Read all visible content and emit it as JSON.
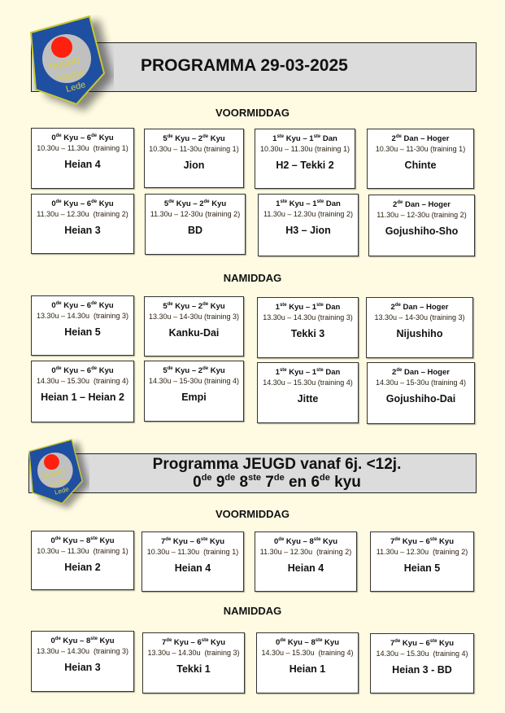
{
  "logo": {
    "lines": [
      "TAISHO",
      "Karate",
      "Lede"
    ],
    "colors": {
      "shield": "#1f4fa0",
      "border": "#c8c832",
      "disc": "#c0c0c0",
      "sun": "#ff2010"
    }
  },
  "main_program": {
    "title": "PROGRAMMA 29-03-2025",
    "morning_label": "VOORMIDDAG",
    "afternoon_label": "NAMIDDAG",
    "morning_cards": [
      {
        "level": [
          [
            "0",
            "de",
            " Kyu – "
          ],
          [
            "6",
            "de",
            " Kyu"
          ]
        ],
        "time": "10.30u – 11.30u  (training 1)",
        "kata": "Heian 4"
      },
      {
        "level": [
          [
            "5",
            "de",
            " Kyu – "
          ],
          [
            "2",
            "de",
            " Kyu"
          ]
        ],
        "time": "10.30u – 11-30u (training 1)",
        "kata": "Jion"
      },
      {
        "level": [
          [
            "1",
            "ste",
            " Kyu – "
          ],
          [
            "1",
            "ste",
            " Dan"
          ]
        ],
        "time": "10.30u – 11.30u (training 1)",
        "kata": "H2 – Tekki 2"
      },
      {
        "level": [
          [
            "2",
            "de",
            " Dan – Hoger"
          ]
        ],
        "time": "10.30u – 11-30u (training 1)",
        "kata": "Chinte"
      },
      {
        "level": [
          [
            "0",
            "de",
            " Kyu – "
          ],
          [
            "6",
            "de",
            " Kyu"
          ]
        ],
        "time": "11.30u – 12.30u  (training 2)",
        "kata": "Heian 3"
      },
      {
        "level": [
          [
            "5",
            "de",
            " Kyu – "
          ],
          [
            "2",
            "de",
            " Kyu"
          ]
        ],
        "time": "11.30u – 12-30u (training 2)",
        "kata": "BD"
      },
      {
        "level": [
          [
            "1",
            "ste",
            " Kyu – "
          ],
          [
            "1",
            "ste",
            " Dan"
          ]
        ],
        "time": "11.30u – 12.30u (training 2)",
        "kata": "H3 – Jion"
      },
      {
        "level": [
          [
            "2",
            "de",
            " Dan – Hoger"
          ]
        ],
        "time": "11.30u – 12-30u (training 2)",
        "kata": "Gojushiho-Sho"
      }
    ],
    "afternoon_cards": [
      {
        "level": [
          [
            "0",
            "de",
            " Kyu – "
          ],
          [
            "6",
            "de",
            " Kyu"
          ]
        ],
        "time": "13.30u – 14.30u  (training 3)",
        "kata": "Heian 5"
      },
      {
        "level": [
          [
            "5",
            "de",
            " Kyu – "
          ],
          [
            "2",
            "de",
            " Kyu"
          ]
        ],
        "time": "13.30u – 14-30u (training 3)",
        "kata": "Kanku-Dai"
      },
      {
        "level": [
          [
            "1",
            "ste",
            " Kyu – "
          ],
          [
            "1",
            "ste",
            " Dan"
          ]
        ],
        "time": "13.30u – 14.30u (training 3)",
        "kata": "Tekki 3"
      },
      {
        "level": [
          [
            "2",
            "de",
            " Dan – Hoger"
          ]
        ],
        "time": "13.30u – 14-30u (training 3)",
        "kata": "Nijushiho"
      },
      {
        "level": [
          [
            "0",
            "de",
            " Kyu – "
          ],
          [
            "6",
            "de",
            " Kyu"
          ]
        ],
        "time": "14.30u – 15.30u  (training 4)",
        "kata": "Heian 1 – Heian 2"
      },
      {
        "level": [
          [
            "5",
            "de",
            " Kyu – "
          ],
          [
            "2",
            "de",
            " Kyu"
          ]
        ],
        "time": "14.30u – 15-30u (training 4)",
        "kata": "Empi"
      },
      {
        "level": [
          [
            "1",
            "ste",
            " Kyu – "
          ],
          [
            "1",
            "ste",
            " Dan"
          ]
        ],
        "time": "14.30u – 15.30u (training 4)",
        "kata": "Jitte"
      },
      {
        "level": [
          [
            "2",
            "de",
            " Dan – Hoger"
          ]
        ],
        "time": "14.30u – 15-30u (training 4)",
        "kata": "Gojushiho-Dai"
      }
    ]
  },
  "youth_program": {
    "title": "Programma JEUGD vanaf 6j. <12j.",
    "subtitle": [
      [
        "0",
        "de",
        " "
      ],
      [
        "9",
        "de",
        " "
      ],
      [
        "8",
        "ste",
        " "
      ],
      [
        "7",
        "de",
        " en "
      ],
      [
        "6",
        "de",
        " kyu"
      ]
    ],
    "morning_label": "VOORMIDDAG",
    "afternoon_label": "NAMIDDAG",
    "morning_cards": [
      {
        "level": [
          [
            "0",
            "de",
            " Kyu – "
          ],
          [
            "8",
            "ste",
            " Kyu"
          ]
        ],
        "time": "10.30u – 11.30u  (training 1)",
        "kata": "Heian 2"
      },
      {
        "level": [
          [
            "7",
            "de",
            " Kyu – "
          ],
          [
            "6",
            "ste",
            " Kyu"
          ]
        ],
        "time": "10.30u – 11.30u  (training 1)",
        "kata": "Heian 4"
      },
      {
        "level": [
          [
            "0",
            "de",
            " Kyu – "
          ],
          [
            "8",
            "ste",
            " Kyu"
          ]
        ],
        "time": "11.30u – 12.30u  (training 2)",
        "kata": "Heian 4"
      },
      {
        "level": [
          [
            "7",
            "de",
            " Kyu – "
          ],
          [
            "6",
            "ste",
            " Kyu"
          ]
        ],
        "time": "11.30u – 12.30u  (training 2)",
        "kata": "Heian 5"
      }
    ],
    "afternoon_cards": [
      {
        "level": [
          [
            "0",
            "de",
            " Kyu – "
          ],
          [
            "8",
            "ste",
            " Kyu"
          ]
        ],
        "time": "13.30u – 14.30u  (training 3)",
        "kata": "Heian 3"
      },
      {
        "level": [
          [
            "7",
            "de",
            " Kyu – "
          ],
          [
            "6",
            "ste",
            " Kyu"
          ]
        ],
        "time": "13.30u – 14.30u  (training 3)",
        "kata": "Tekki 1"
      },
      {
        "level": [
          [
            "0",
            "de",
            " Kyu – "
          ],
          [
            "8",
            "ste",
            " Kyu"
          ]
        ],
        "time": "14.30u – 15.30u  (training 4)",
        "kata": "Heian 1"
      },
      {
        "level": [
          [
            "7",
            "de",
            " Kyu – "
          ],
          [
            "6",
            "ste",
            " Kyu"
          ]
        ],
        "time": "14.30u – 15.30u  (training 4)",
        "kata": "Heian 3 - BD"
      }
    ]
  }
}
